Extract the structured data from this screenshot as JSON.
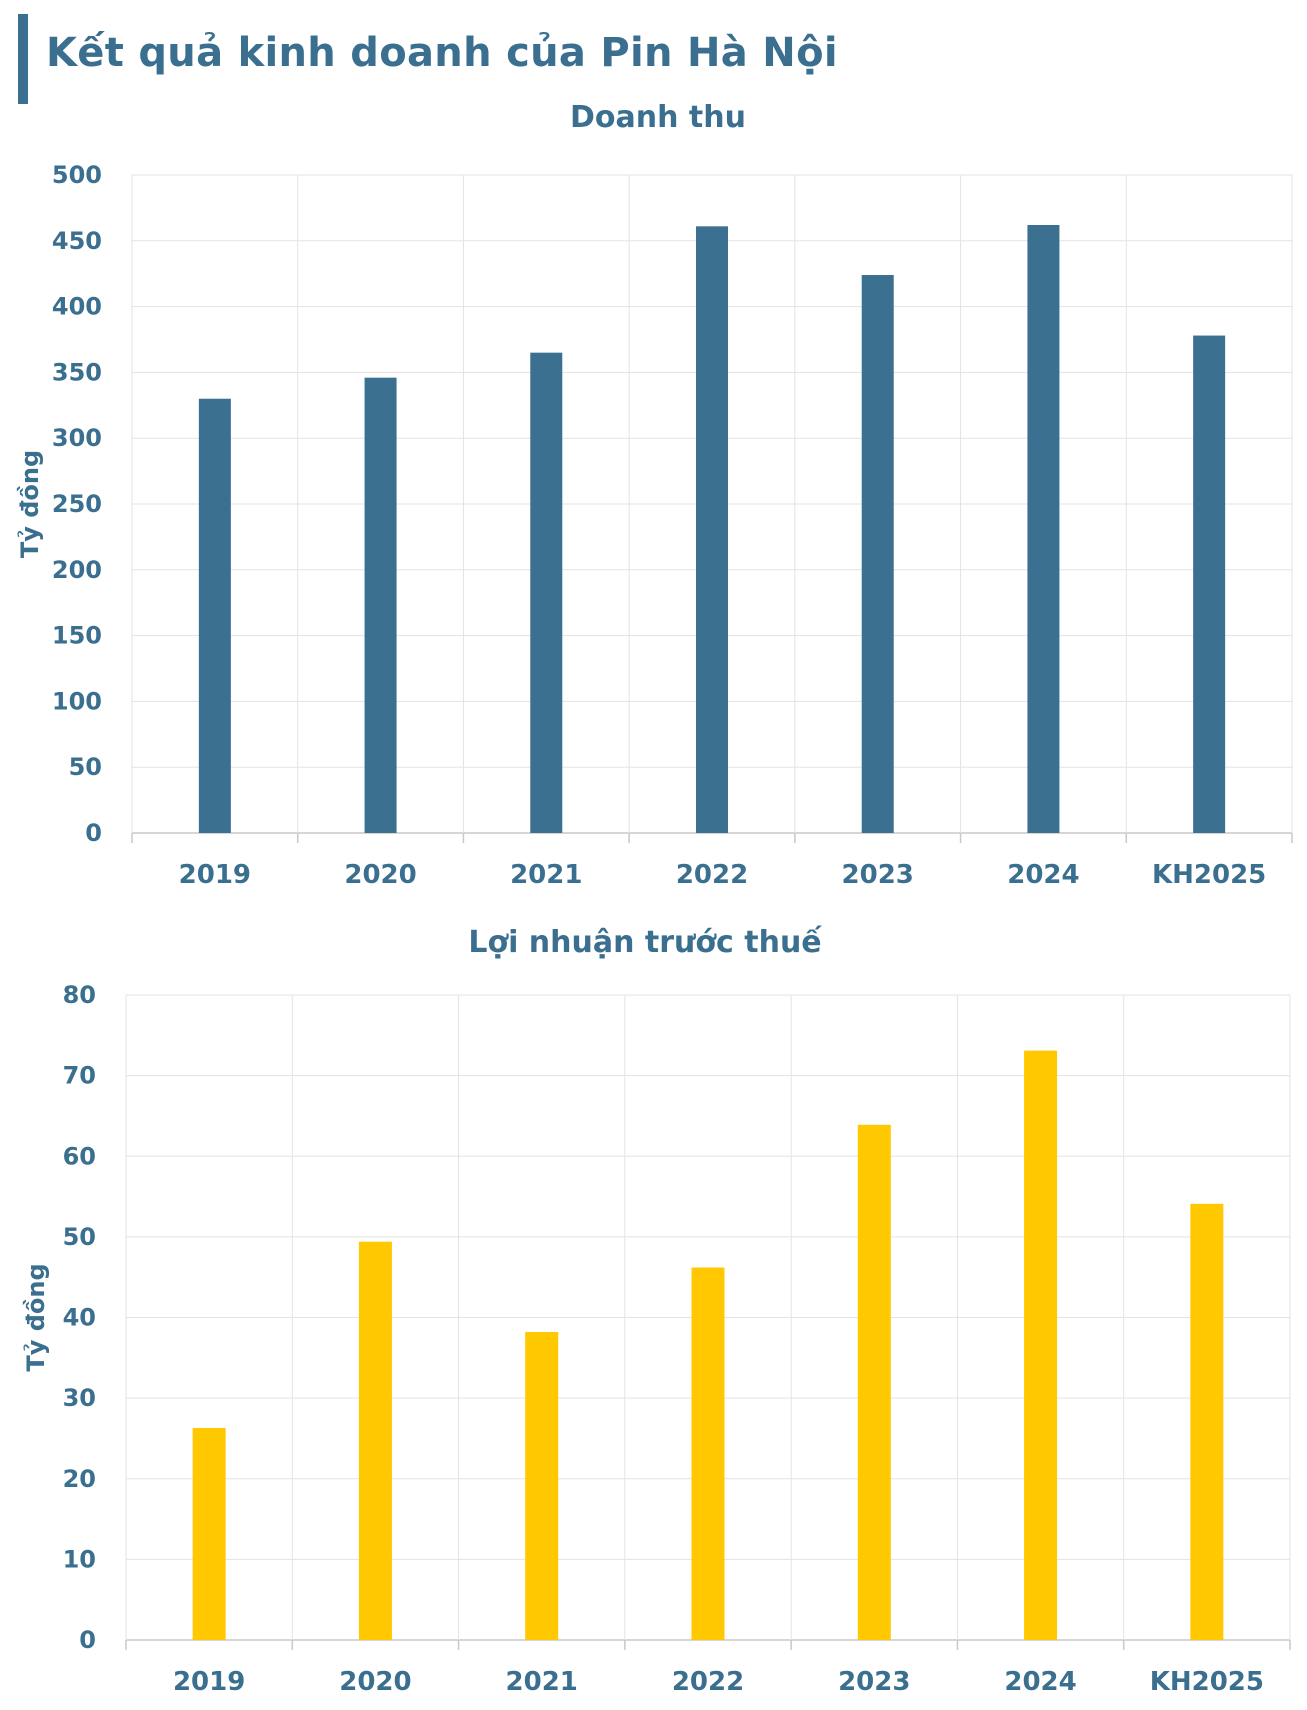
{
  "page_title": "Kết quả kinh doanh của Pin Hà Nội",
  "colors": {
    "title": "#3a6f8f",
    "revenue_bar": "#3b7090",
    "profit_bar": "#ffc800",
    "grid": "#e3e3e3"
  },
  "chart_data": [
    {
      "type": "bar",
      "title": "Doanh thu",
      "ylabel": "Tỷ đồng",
      "xlabel": "",
      "categories": [
        "2019",
        "2020",
        "2021",
        "2022",
        "2023",
        "2024",
        "KH2025"
      ],
      "values": [
        330,
        346,
        365,
        461,
        424,
        462,
        378
      ],
      "ylim": [
        0,
        500
      ],
      "yticks": [
        0,
        50,
        100,
        150,
        200,
        250,
        300,
        350,
        400,
        450,
        500
      ],
      "grid": true,
      "legend": "none"
    },
    {
      "type": "bar",
      "title": "Lợi nhuận trước thuế",
      "ylabel": "Tỷ đồng",
      "xlabel": "",
      "categories": [
        "2019",
        "2020",
        "2021",
        "2022",
        "2023",
        "2024",
        "KH2025"
      ],
      "values": [
        26.3,
        49.4,
        38.2,
        46.2,
        63.9,
        73.1,
        54.1
      ],
      "ylim": [
        0,
        80
      ],
      "yticks": [
        0,
        10,
        20,
        30,
        40,
        50,
        60,
        70,
        80
      ],
      "grid": true,
      "legend": "none"
    }
  ]
}
